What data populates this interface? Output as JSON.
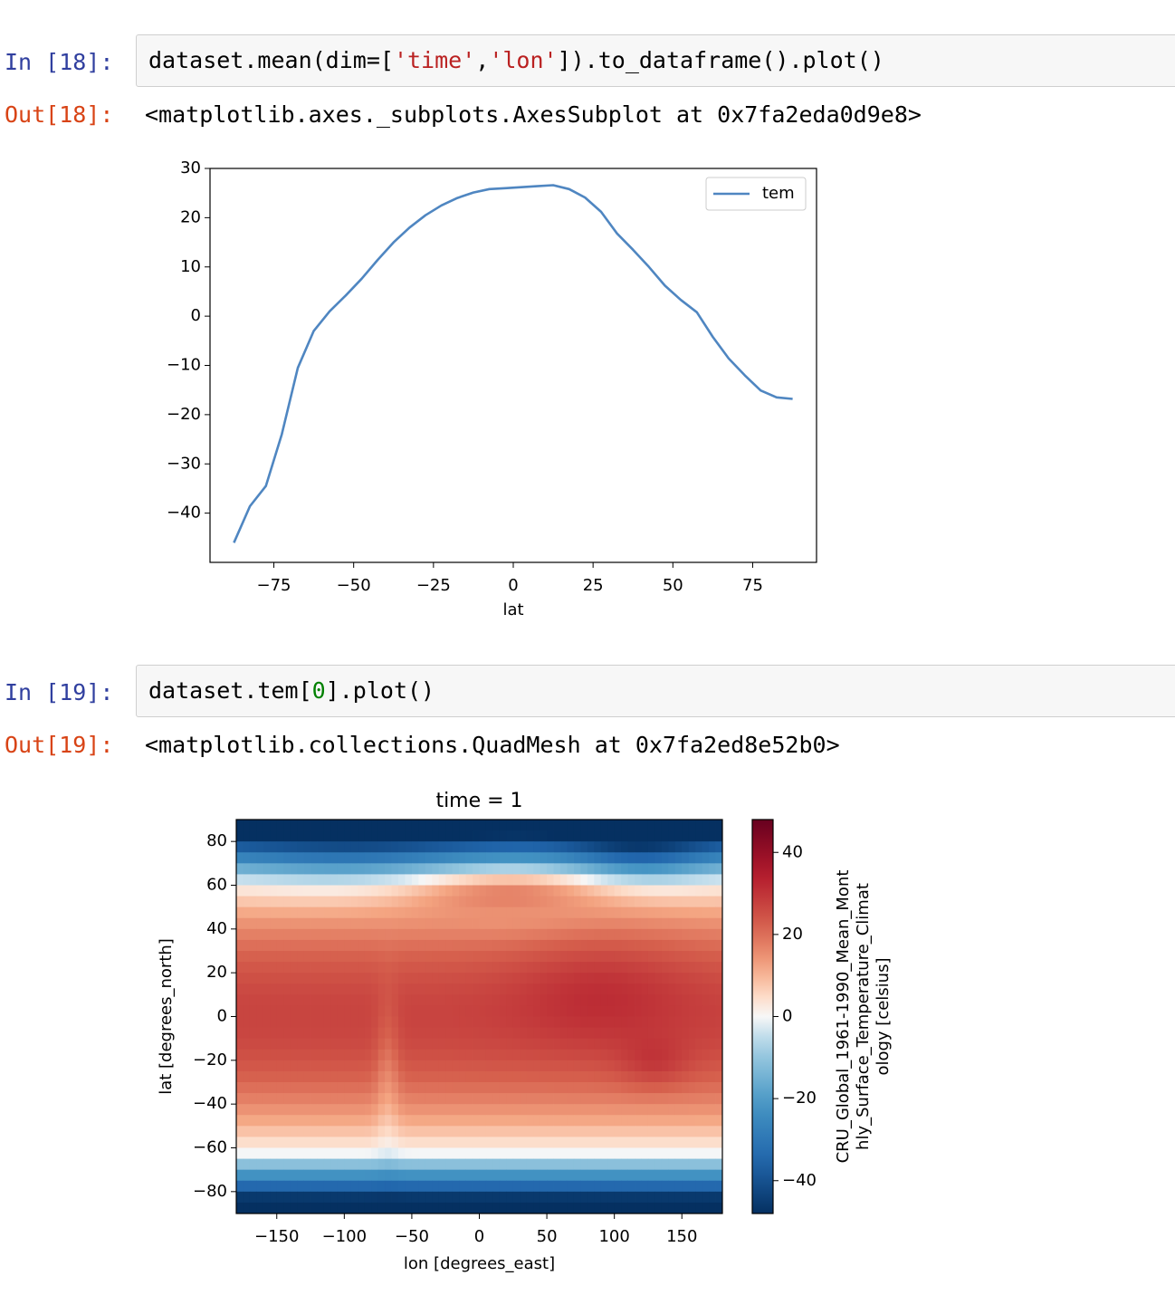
{
  "cells": [
    {
      "in_prompt": "In [18]:",
      "code_parts": [
        "dataset.mean(dim=[",
        "'time'",
        ",",
        "'lon'",
        "]).to_dataframe().plot()"
      ],
      "out_prompt": "Out[18]:",
      "out_text": "<matplotlib.axes._subplots.AxesSubplot at 0x7fa2eda0d9e8>"
    },
    {
      "in_prompt": "In [19]:",
      "code_parts": [
        "dataset.tem[",
        "0",
        "].plot()"
      ],
      "out_prompt": "Out[19]:",
      "out_text": "<matplotlib.collections.QuadMesh at 0x7fa2ed8e52b0>"
    }
  ],
  "chart_data": [
    {
      "type": "line",
      "title": "",
      "xlabel": "lat",
      "ylabel": "",
      "xlim": [
        -95,
        95
      ],
      "ylim": [
        -50,
        30
      ],
      "xticks": [
        -75,
        -50,
        -25,
        0,
        25,
        50,
        75
      ],
      "xtick_labels": [
        "−75",
        "−50",
        "−25",
        "0",
        "25",
        "50",
        "75"
      ],
      "yticks": [
        30,
        20,
        10,
        0,
        -10,
        -20,
        -30,
        -40
      ],
      "ytick_labels": [
        "30",
        "20",
        "10",
        "0",
        "−10",
        "−20",
        "−30",
        "−40"
      ],
      "legend": "top-right",
      "color": "#4f86c1",
      "series": [
        {
          "name": "tem",
          "x": [
            -87.5,
            -82.5,
            -77.5,
            -72.5,
            -67.5,
            -62.5,
            -57.5,
            -52.5,
            -47.5,
            -42.5,
            -37.5,
            -32.5,
            -27.5,
            -22.5,
            -17.5,
            -12.5,
            -7.5,
            -2.5,
            2.5,
            7.5,
            12.5,
            17.5,
            22.5,
            27.5,
            32.5,
            37.5,
            42.5,
            47.5,
            52.5,
            57.5,
            62.5,
            67.5,
            72.5,
            77.5,
            82.5,
            87.5
          ],
          "y": [
            -46,
            -38.6,
            -34.5,
            -24,
            -10.5,
            -3,
            1,
            4.2,
            7.6,
            11.4,
            15,
            18,
            20.5,
            22.5,
            24,
            25.1,
            25.8,
            26,
            26.2,
            26.4,
            26.6,
            25.8,
            24.1,
            21.2,
            16.8,
            13.5,
            10,
            6.2,
            3.3,
            0.8,
            -4.2,
            -8.6,
            -12,
            -15.1,
            -16.5,
            -16.8
          ]
        }
      ]
    },
    {
      "type": "heatmap",
      "title": "time = 1",
      "xlabel": "lon [degrees_east]",
      "ylabel": "lat [degrees_north]",
      "xlim": [
        -180,
        180
      ],
      "ylim": [
        -90,
        90
      ],
      "xticks": [
        -150,
        -100,
        -50,
        0,
        50,
        100,
        150
      ],
      "xtick_labels": [
        "−150",
        "−100",
        "−50",
        "0",
        "50",
        "100",
        "150"
      ],
      "yticks": [
        80,
        60,
        40,
        20,
        0,
        -20,
        -40,
        -60,
        -80
      ],
      "ytick_labels": [
        "80",
        "60",
        "40",
        "20",
        "0",
        "−20",
        "−40",
        "−60",
        "−80"
      ],
      "colormap": "RdBu_r",
      "colorbar": {
        "range": [
          -48,
          48
        ],
        "ticks": [
          40,
          20,
          0,
          -20,
          -40
        ],
        "tick_labels": [
          "40",
          "20",
          "0",
          "−20",
          "−40"
        ],
        "label_lines": [
          "CRU_Global_1961-1990_Mean_Mont",
          "hly_Surface_Temperature_Climat",
          "ology [celsius]"
        ]
      }
    }
  ]
}
